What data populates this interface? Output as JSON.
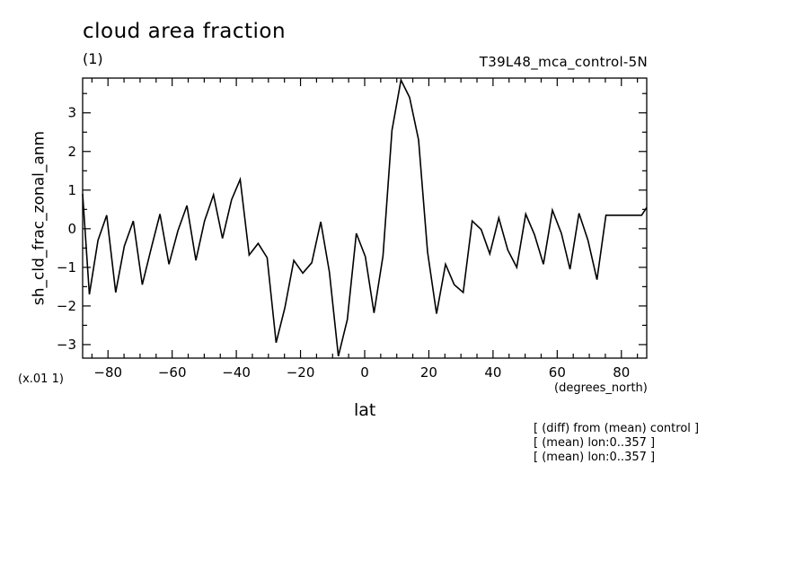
{
  "header": {
    "title": "cloud area fraction",
    "units": "(1)",
    "run_label": "T39L48_mca_control-5N"
  },
  "axes": {
    "ylabel": "sh_cld_frac_zonal_anm",
    "xlabel": "lat",
    "x_units": "(degrees_north)",
    "y_scale_note": "(x.01 1)"
  },
  "notes": [
    "[ (diff) from (mean) control ]",
    "[ (mean) lon:0..357 ]",
    "[ (mean) lon:0..357 ]"
  ],
  "chart_data": {
    "type": "line",
    "title": "cloud area fraction",
    "xlabel": "lat",
    "ylabel": "sh_cld_frac_zonal_anm",
    "xlim": [
      -87.9,
      87.9
    ],
    "ylim": [
      -3.35,
      3.9
    ],
    "x_ticks": [
      -80,
      -60,
      -40,
      -20,
      0,
      20,
      40,
      60,
      80
    ],
    "y_ticks": [
      -3,
      -2,
      -1,
      0,
      1,
      2,
      3
    ],
    "grid": false,
    "series": [
      {
        "x": [
          -87.9,
          -85.8,
          -83.1,
          -80.4,
          -77.6,
          -74.9,
          -72.1,
          -69.3,
          -66.5,
          -63.8,
          -61.0,
          -58.2,
          -55.4,
          -52.6,
          -49.9,
          -47.1,
          -44.3,
          -41.5,
          -38.8,
          -36.0,
          -33.2,
          -30.4,
          -27.6,
          -24.9,
          -22.1,
          -19.3,
          -16.5,
          -13.7,
          -11.0,
          -8.2,
          -5.4,
          -2.6,
          0.2,
          2.9,
          5.7,
          8.5,
          11.3,
          14.0,
          16.8,
          19.6,
          22.4,
          25.2,
          27.9,
          30.7,
          33.5,
          36.3,
          39.0,
          41.8,
          44.6,
          47.4,
          50.2,
          52.9,
          55.7,
          58.5,
          61.3,
          64.0,
          66.8,
          69.6,
          72.4,
          75.2,
          77.9,
          80.7,
          83.5,
          86.3,
          87.9
        ],
        "values": [
          0.9,
          -1.7,
          -0.3,
          0.35,
          -1.65,
          -0.45,
          0.2,
          -1.45,
          -0.5,
          0.38,
          -0.92,
          -0.05,
          0.6,
          -0.82,
          0.2,
          0.88,
          -0.25,
          0.75,
          1.28,
          -0.68,
          -0.38,
          -0.75,
          -2.95,
          -2.05,
          -0.82,
          -1.15,
          -0.88,
          0.18,
          -1.12,
          -3.3,
          -2.35,
          -0.12,
          -0.72,
          -2.18,
          -0.7,
          2.55,
          3.85,
          3.4,
          2.3,
          -0.6,
          -2.2,
          -0.92,
          -1.45,
          -1.65,
          0.2,
          -0.02,
          -0.65,
          0.28,
          -0.55,
          -1.0,
          0.38,
          -0.15,
          -0.92,
          0.48,
          -0.12,
          -1.05,
          0.4,
          -0.3,
          -1.32,
          0.35,
          0.35,
          0.35,
          0.35,
          0.35,
          0.55
        ]
      }
    ]
  }
}
